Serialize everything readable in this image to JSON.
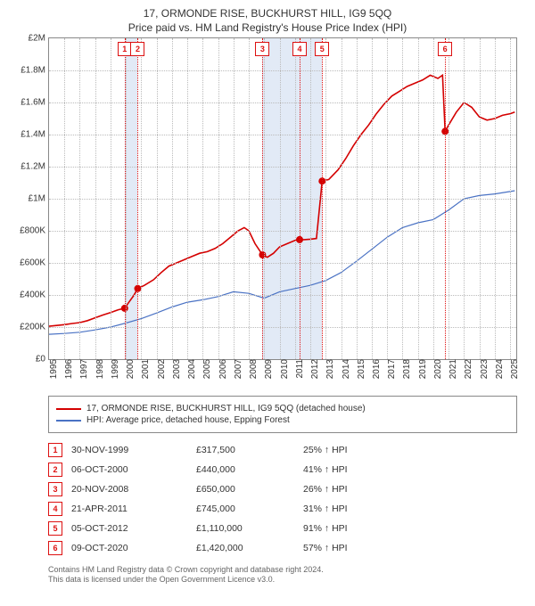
{
  "title": "17, ORMONDE RISE, BUCKHURST HILL, IG9 5QQ",
  "subtitle": "Price paid vs. HM Land Registry's House Price Index (HPI)",
  "chart": {
    "type": "line",
    "x_range": [
      1995.0,
      2025.4
    ],
    "y_range": [
      0,
      2000000
    ],
    "x_ticks": [
      1995,
      1996,
      1997,
      1998,
      1999,
      2000,
      2001,
      2002,
      2003,
      2004,
      2005,
      2006,
      2007,
      2008,
      2009,
      2010,
      2011,
      2012,
      2013,
      2014,
      2015,
      2016,
      2017,
      2018,
      2019,
      2020,
      2021,
      2022,
      2023,
      2024,
      2025
    ],
    "y_ticks": [
      {
        "v": 0,
        "label": "£0"
      },
      {
        "v": 200000,
        "label": "£200K"
      },
      {
        "v": 400000,
        "label": "£400K"
      },
      {
        "v": 600000,
        "label": "£600K"
      },
      {
        "v": 800000,
        "label": "£800K"
      },
      {
        "v": 1000000,
        "label": "£1M"
      },
      {
        "v": 1200000,
        "label": "£1.2M"
      },
      {
        "v": 1400000,
        "label": "£1.4M"
      },
      {
        "v": 1600000,
        "label": "£1.6M"
      },
      {
        "v": 1800000,
        "label": "£1.8M"
      },
      {
        "v": 2000000,
        "label": "£2M"
      }
    ],
    "line_width": 1.5,
    "dot_radius": 4,
    "grid_color": "#bbbbbb",
    "sale_line_color": "#dd1111",
    "band_color": "rgba(173,196,230,0.35)",
    "series": [
      {
        "id": "property",
        "label": "17, ORMONDE RISE, BUCKHURST HILL, IG9 5QQ (detached house)",
        "color": "#d40000",
        "width": 1.6,
        "data": [
          [
            1995.0,
            205000
          ],
          [
            1995.5,
            210000
          ],
          [
            1996.0,
            215000
          ],
          [
            1996.5,
            222000
          ],
          [
            1997.0,
            228000
          ],
          [
            1997.5,
            240000
          ],
          [
            1998.0,
            258000
          ],
          [
            1998.5,
            275000
          ],
          [
            1999.0,
            290000
          ],
          [
            1999.5,
            308000
          ],
          [
            1999.92,
            317500
          ],
          [
            2000.2,
            355000
          ],
          [
            2000.5,
            395000
          ],
          [
            2000.77,
            440000
          ],
          [
            2001.2,
            460000
          ],
          [
            2001.8,
            495000
          ],
          [
            2002.3,
            540000
          ],
          [
            2002.8,
            580000
          ],
          [
            2003.3,
            600000
          ],
          [
            2003.8,
            620000
          ],
          [
            2004.3,
            640000
          ],
          [
            2004.8,
            660000
          ],
          [
            2005.3,
            670000
          ],
          [
            2005.8,
            690000
          ],
          [
            2006.3,
            720000
          ],
          [
            2006.8,
            760000
          ],
          [
            2007.3,
            800000
          ],
          [
            2007.7,
            820000
          ],
          [
            2008.0,
            800000
          ],
          [
            2008.4,
            720000
          ],
          [
            2008.89,
            650000
          ],
          [
            2009.2,
            635000
          ],
          [
            2009.6,
            660000
          ],
          [
            2010.0,
            700000
          ],
          [
            2010.5,
            720000
          ],
          [
            2011.0,
            740000
          ],
          [
            2011.3,
            745000
          ],
          [
            2011.6,
            745000
          ],
          [
            2012.0,
            748000
          ],
          [
            2012.4,
            752000
          ],
          [
            2012.77,
            1110000
          ],
          [
            2013.2,
            1120000
          ],
          [
            2013.8,
            1180000
          ],
          [
            2014.3,
            1250000
          ],
          [
            2014.8,
            1330000
          ],
          [
            2015.3,
            1400000
          ],
          [
            2015.8,
            1460000
          ],
          [
            2016.3,
            1530000
          ],
          [
            2016.8,
            1590000
          ],
          [
            2017.3,
            1640000
          ],
          [
            2017.8,
            1670000
          ],
          [
            2018.3,
            1700000
          ],
          [
            2018.8,
            1720000
          ],
          [
            2019.3,
            1740000
          ],
          [
            2019.8,
            1770000
          ],
          [
            2020.3,
            1750000
          ],
          [
            2020.6,
            1770000
          ],
          [
            2020.77,
            1420000
          ],
          [
            2021.0,
            1460000
          ],
          [
            2021.5,
            1540000
          ],
          [
            2022.0,
            1600000
          ],
          [
            2022.5,
            1570000
          ],
          [
            2023.0,
            1510000
          ],
          [
            2023.5,
            1490000
          ],
          [
            2024.0,
            1500000
          ],
          [
            2024.5,
            1520000
          ],
          [
            2025.0,
            1530000
          ],
          [
            2025.3,
            1540000
          ]
        ],
        "sale_dots": [
          [
            1999.92,
            317500
          ],
          [
            2000.77,
            440000
          ],
          [
            2008.89,
            650000
          ],
          [
            2011.3,
            745000
          ],
          [
            2012.77,
            1110000
          ],
          [
            2020.77,
            1420000
          ]
        ]
      },
      {
        "id": "hpi",
        "label": "HPI: Average price, detached house, Epping Forest",
        "color": "#4a72c4",
        "width": 1.2,
        "data": [
          [
            1995.0,
            155000
          ],
          [
            1996.0,
            160000
          ],
          [
            1997.0,
            168000
          ],
          [
            1998.0,
            182000
          ],
          [
            1999.0,
            200000
          ],
          [
            2000.0,
            225000
          ],
          [
            2001.0,
            252000
          ],
          [
            2002.0,
            288000
          ],
          [
            2003.0,
            325000
          ],
          [
            2004.0,
            355000
          ],
          [
            2005.0,
            370000
          ],
          [
            2006.0,
            390000
          ],
          [
            2007.0,
            420000
          ],
          [
            2008.0,
            410000
          ],
          [
            2009.0,
            380000
          ],
          [
            2010.0,
            420000
          ],
          [
            2011.0,
            440000
          ],
          [
            2012.0,
            460000
          ],
          [
            2013.0,
            490000
          ],
          [
            2014.0,
            540000
          ],
          [
            2015.0,
            610000
          ],
          [
            2016.0,
            685000
          ],
          [
            2017.0,
            760000
          ],
          [
            2018.0,
            820000
          ],
          [
            2019.0,
            850000
          ],
          [
            2020.0,
            870000
          ],
          [
            2021.0,
            930000
          ],
          [
            2022.0,
            1000000
          ],
          [
            2023.0,
            1020000
          ],
          [
            2024.0,
            1030000
          ],
          [
            2025.0,
            1045000
          ],
          [
            2025.3,
            1050000
          ]
        ]
      }
    ],
    "sale_markers": [
      {
        "n": "1",
        "x": 1999.92
      },
      {
        "n": "2",
        "x": 2000.77
      },
      {
        "n": "3",
        "x": 2008.89
      },
      {
        "n": "4",
        "x": 2011.3
      },
      {
        "n": "5",
        "x": 2012.77
      },
      {
        "n": "6",
        "x": 2020.77
      }
    ],
    "bands": [
      {
        "from": 1999.92,
        "to": 2000.77
      },
      {
        "from": 2008.89,
        "to": 2011.3
      },
      {
        "from": 2011.3,
        "to": 2012.77
      }
    ]
  },
  "legend": [
    {
      "color": "#d40000",
      "label": "17, ORMONDE RISE, BUCKHURST HILL, IG9 5QQ (detached house)"
    },
    {
      "color": "#4a72c4",
      "label": "HPI: Average price, detached house, Epping Forest"
    }
  ],
  "sales": [
    {
      "n": "1",
      "date": "30-NOV-1999",
      "price": "£317,500",
      "delta": "25% ↑ HPI"
    },
    {
      "n": "2",
      "date": "06-OCT-2000",
      "price": "£440,000",
      "delta": "41% ↑ HPI"
    },
    {
      "n": "3",
      "date": "20-NOV-2008",
      "price": "£650,000",
      "delta": "26% ↑ HPI"
    },
    {
      "n": "4",
      "date": "21-APR-2011",
      "price": "£745,000",
      "delta": "31% ↑ HPI"
    },
    {
      "n": "5",
      "date": "05-OCT-2012",
      "price": "£1,110,000",
      "delta": "91% ↑ HPI"
    },
    {
      "n": "6",
      "date": "09-OCT-2020",
      "price": "£1,420,000",
      "delta": "57% ↑ HPI"
    }
  ],
  "footnote1": "Contains HM Land Registry data © Crown copyright and database right 2024.",
  "footnote2": "This data is licensed under the Open Government Licence v3.0."
}
